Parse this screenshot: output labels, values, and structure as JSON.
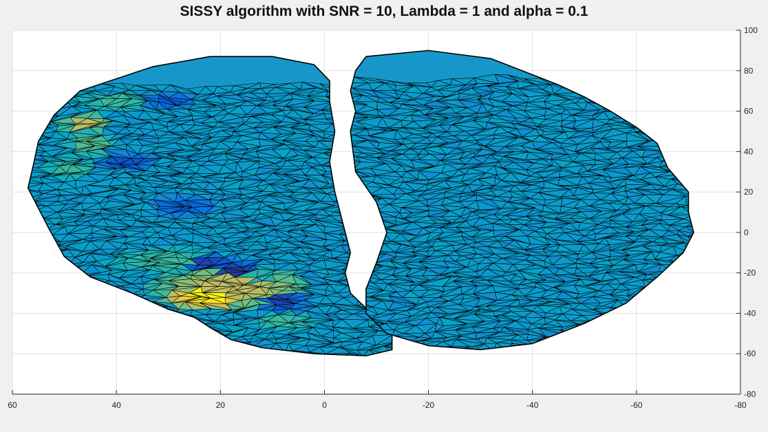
{
  "chart_data": {
    "type": "surface",
    "title": "SISSY algorithm with SNR = 10, Lambda = 1 and alpha = 0.1",
    "xlabel": "",
    "ylabel": "",
    "xlim": [
      60,
      -80
    ],
    "ylim": [
      -80,
      100
    ],
    "x_reversed": true,
    "x_ticks": [
      60,
      40,
      20,
      0,
      -20,
      -40,
      -60,
      -80
    ],
    "y_ticks": [
      100,
      80,
      60,
      40,
      20,
      0,
      -20,
      -40,
      -60,
      -80
    ],
    "y_axis_location": "right",
    "grid": true,
    "colormap": "parula",
    "colors": {
      "base": "#1797c9",
      "mesh_edges": "#000000",
      "figure_bg": "#f0f0f0",
      "axes_bg": "#ffffff",
      "grid": "#dfdfdf"
    },
    "hotspots": [
      {
        "x": 22,
        "y": -31,
        "level": 1.0,
        "rx": 10,
        "ry": 8
      },
      {
        "x": 18,
        "y": -27,
        "level": 0.7,
        "rx": 16,
        "ry": 12
      },
      {
        "x": 30,
        "y": -14,
        "level": 0.45,
        "rx": 12,
        "ry": 7
      },
      {
        "x": 46,
        "y": 54,
        "level": 0.7,
        "rx": 5,
        "ry": 5
      },
      {
        "x": 45,
        "y": 44,
        "level": 0.5,
        "rx": 5,
        "ry": 7
      },
      {
        "x": 49,
        "y": 32,
        "level": 0.45,
        "rx": 5,
        "ry": 6
      },
      {
        "x": 40,
        "y": 65,
        "level": 0.45,
        "rx": 8,
        "ry": 5
      },
      {
        "x": 8,
        "y": -44,
        "level": 0.45,
        "rx": 7,
        "ry": 5
      },
      {
        "x": 13,
        "y": -22,
        "level": 0.4,
        "rx": 6,
        "ry": 6
      },
      {
        "x": 8,
        "y": -34,
        "level": 0.05,
        "rx": 5,
        "ry": 7
      },
      {
        "x": 17,
        "y": -19,
        "level": 0.03,
        "rx": 6,
        "ry": 6
      },
      {
        "x": 23,
        "y": -15,
        "level": 0.05,
        "rx": 7,
        "ry": 5
      },
      {
        "x": 38,
        "y": 35,
        "level": 0.08,
        "rx": 6,
        "ry": 5
      },
      {
        "x": 30,
        "y": 65,
        "level": 0.1,
        "rx": 6,
        "ry": 4
      },
      {
        "x": 27,
        "y": 13,
        "level": 0.12,
        "rx": 7,
        "ry": 6
      }
    ],
    "hemispheres": [
      {
        "name": "",
        "outline": [
          [
            57,
            22
          ],
          [
            55,
            12
          ],
          [
            53,
            2
          ],
          [
            50,
            -12
          ],
          [
            45,
            -22
          ],
          [
            37,
            -30
          ],
          [
            30,
            -38
          ],
          [
            25,
            -42
          ],
          [
            22,
            -47
          ],
          [
            18,
            -53
          ],
          [
            12,
            -57
          ],
          [
            2,
            -60
          ],
          [
            -8,
            -61
          ],
          [
            -13,
            -58
          ],
          [
            -13,
            -50
          ],
          [
            -9,
            -40
          ],
          [
            -5,
            -30
          ],
          [
            -4,
            -20
          ],
          [
            -5,
            -10
          ],
          [
            -4,
            0
          ],
          [
            -3,
            10
          ],
          [
            -2,
            20
          ],
          [
            -1,
            35
          ],
          [
            -2,
            50
          ],
          [
            -1,
            65
          ],
          [
            -1,
            75
          ],
          [
            2,
            83
          ],
          [
            10,
            87
          ],
          [
            22,
            87
          ],
          [
            33,
            82
          ],
          [
            40,
            76
          ],
          [
            47,
            70
          ],
          [
            52,
            58
          ],
          [
            55,
            45
          ],
          [
            56,
            33
          ]
        ]
      },
      {
        "name": "",
        "outline": [
          [
            -8,
            87
          ],
          [
            -20,
            90
          ],
          [
            -32,
            86
          ],
          [
            -40,
            78
          ],
          [
            -45,
            73
          ],
          [
            -50,
            67
          ],
          [
            -55,
            60
          ],
          [
            -60,
            52
          ],
          [
            -64,
            44
          ],
          [
            -66,
            32
          ],
          [
            -70,
            20
          ],
          [
            -70,
            10
          ],
          [
            -71,
            0
          ],
          [
            -69,
            -10
          ],
          [
            -64,
            -22
          ],
          [
            -58,
            -35
          ],
          [
            -50,
            -45
          ],
          [
            -40,
            -55
          ],
          [
            -30,
            -58
          ],
          [
            -20,
            -56
          ],
          [
            -12,
            -50
          ],
          [
            -8,
            -40
          ],
          [
            -8,
            -28
          ],
          [
            -10,
            -15
          ],
          [
            -12,
            0
          ],
          [
            -10,
            15
          ],
          [
            -6,
            30
          ],
          [
            -5,
            50
          ],
          [
            -6,
            60
          ],
          [
            -5,
            70
          ],
          [
            -6,
            80
          ]
        ]
      }
    ],
    "mesh": {
      "spacing": 3.2,
      "jitter": 0.32,
      "seed": 11
    }
  }
}
